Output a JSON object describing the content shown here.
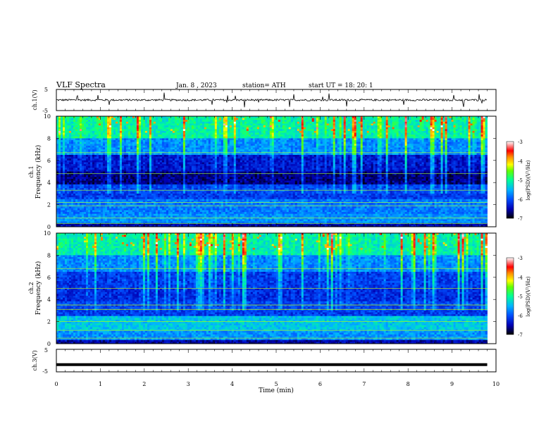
{
  "header": {
    "title": "VLF  Spectra",
    "date": "Jan. 8  , 2023",
    "station": "station= ATH",
    "start": "start  UT  =     18: 20: 1"
  },
  "chart_data": [
    {
      "type": "line",
      "panel": "ch1-waveform",
      "ylabel": "ch.1(V)",
      "ylim": [
        -5,
        5
      ],
      "yticks": [
        "5",
        "-5"
      ],
      "xlim": [
        0,
        10
      ],
      "series_color": "#000000",
      "baseline": 0,
      "amplitude_typical": 0.6
    },
    {
      "type": "heatmap",
      "panel": "ch1-spectrogram",
      "ylabel": "Frequency  (kHz)",
      "channel_label": "ch.1",
      "ylim": [
        0,
        10
      ],
      "yticks": [
        "0",
        "2",
        "4",
        "6",
        "8",
        "10"
      ],
      "xlim": [
        0,
        9.8
      ],
      "colorbar": {
        "label": "log(PSD)(V²/Hz)",
        "range": [
          -7,
          -3
        ],
        "ticks": [
          "-3",
          "-4",
          "-5",
          "-6",
          "-7"
        ],
        "colors": [
          "#000000",
          "#0000c8",
          "#0064ff",
          "#00c8ff",
          "#00ff96",
          "#64ff00",
          "#ffff00",
          "#ff8c00",
          "#ff0000",
          "#ffffff"
        ]
      }
    },
    {
      "type": "heatmap",
      "panel": "ch2-spectrogram",
      "ylabel": "Frequency  (kHz)",
      "channel_label": "ch.2",
      "ylim": [
        0,
        10
      ],
      "yticks": [
        "0",
        "2",
        "4",
        "6",
        "8",
        "10"
      ],
      "xlim": [
        0,
        9.8
      ],
      "colorbar": {
        "label": "log(PSD)(V²/Hz)",
        "range": [
          -7,
          -3
        ],
        "ticks": [
          "-3",
          "-4",
          "-5",
          "-6",
          "-7"
        ]
      }
    },
    {
      "type": "line",
      "panel": "ch3-waveform",
      "ylabel": "ch.3(V)",
      "ylim": [
        -5,
        5
      ],
      "yticks": [
        "5",
        "-5"
      ],
      "xlim": [
        0,
        10
      ],
      "series_color": "#000000",
      "constant_value": -1.8
    }
  ],
  "xaxis": {
    "label": "Time  (min)",
    "ticks": [
      "0",
      "1",
      "2",
      "3",
      "4",
      "5",
      "6",
      "7",
      "8",
      "9",
      "10"
    ]
  }
}
